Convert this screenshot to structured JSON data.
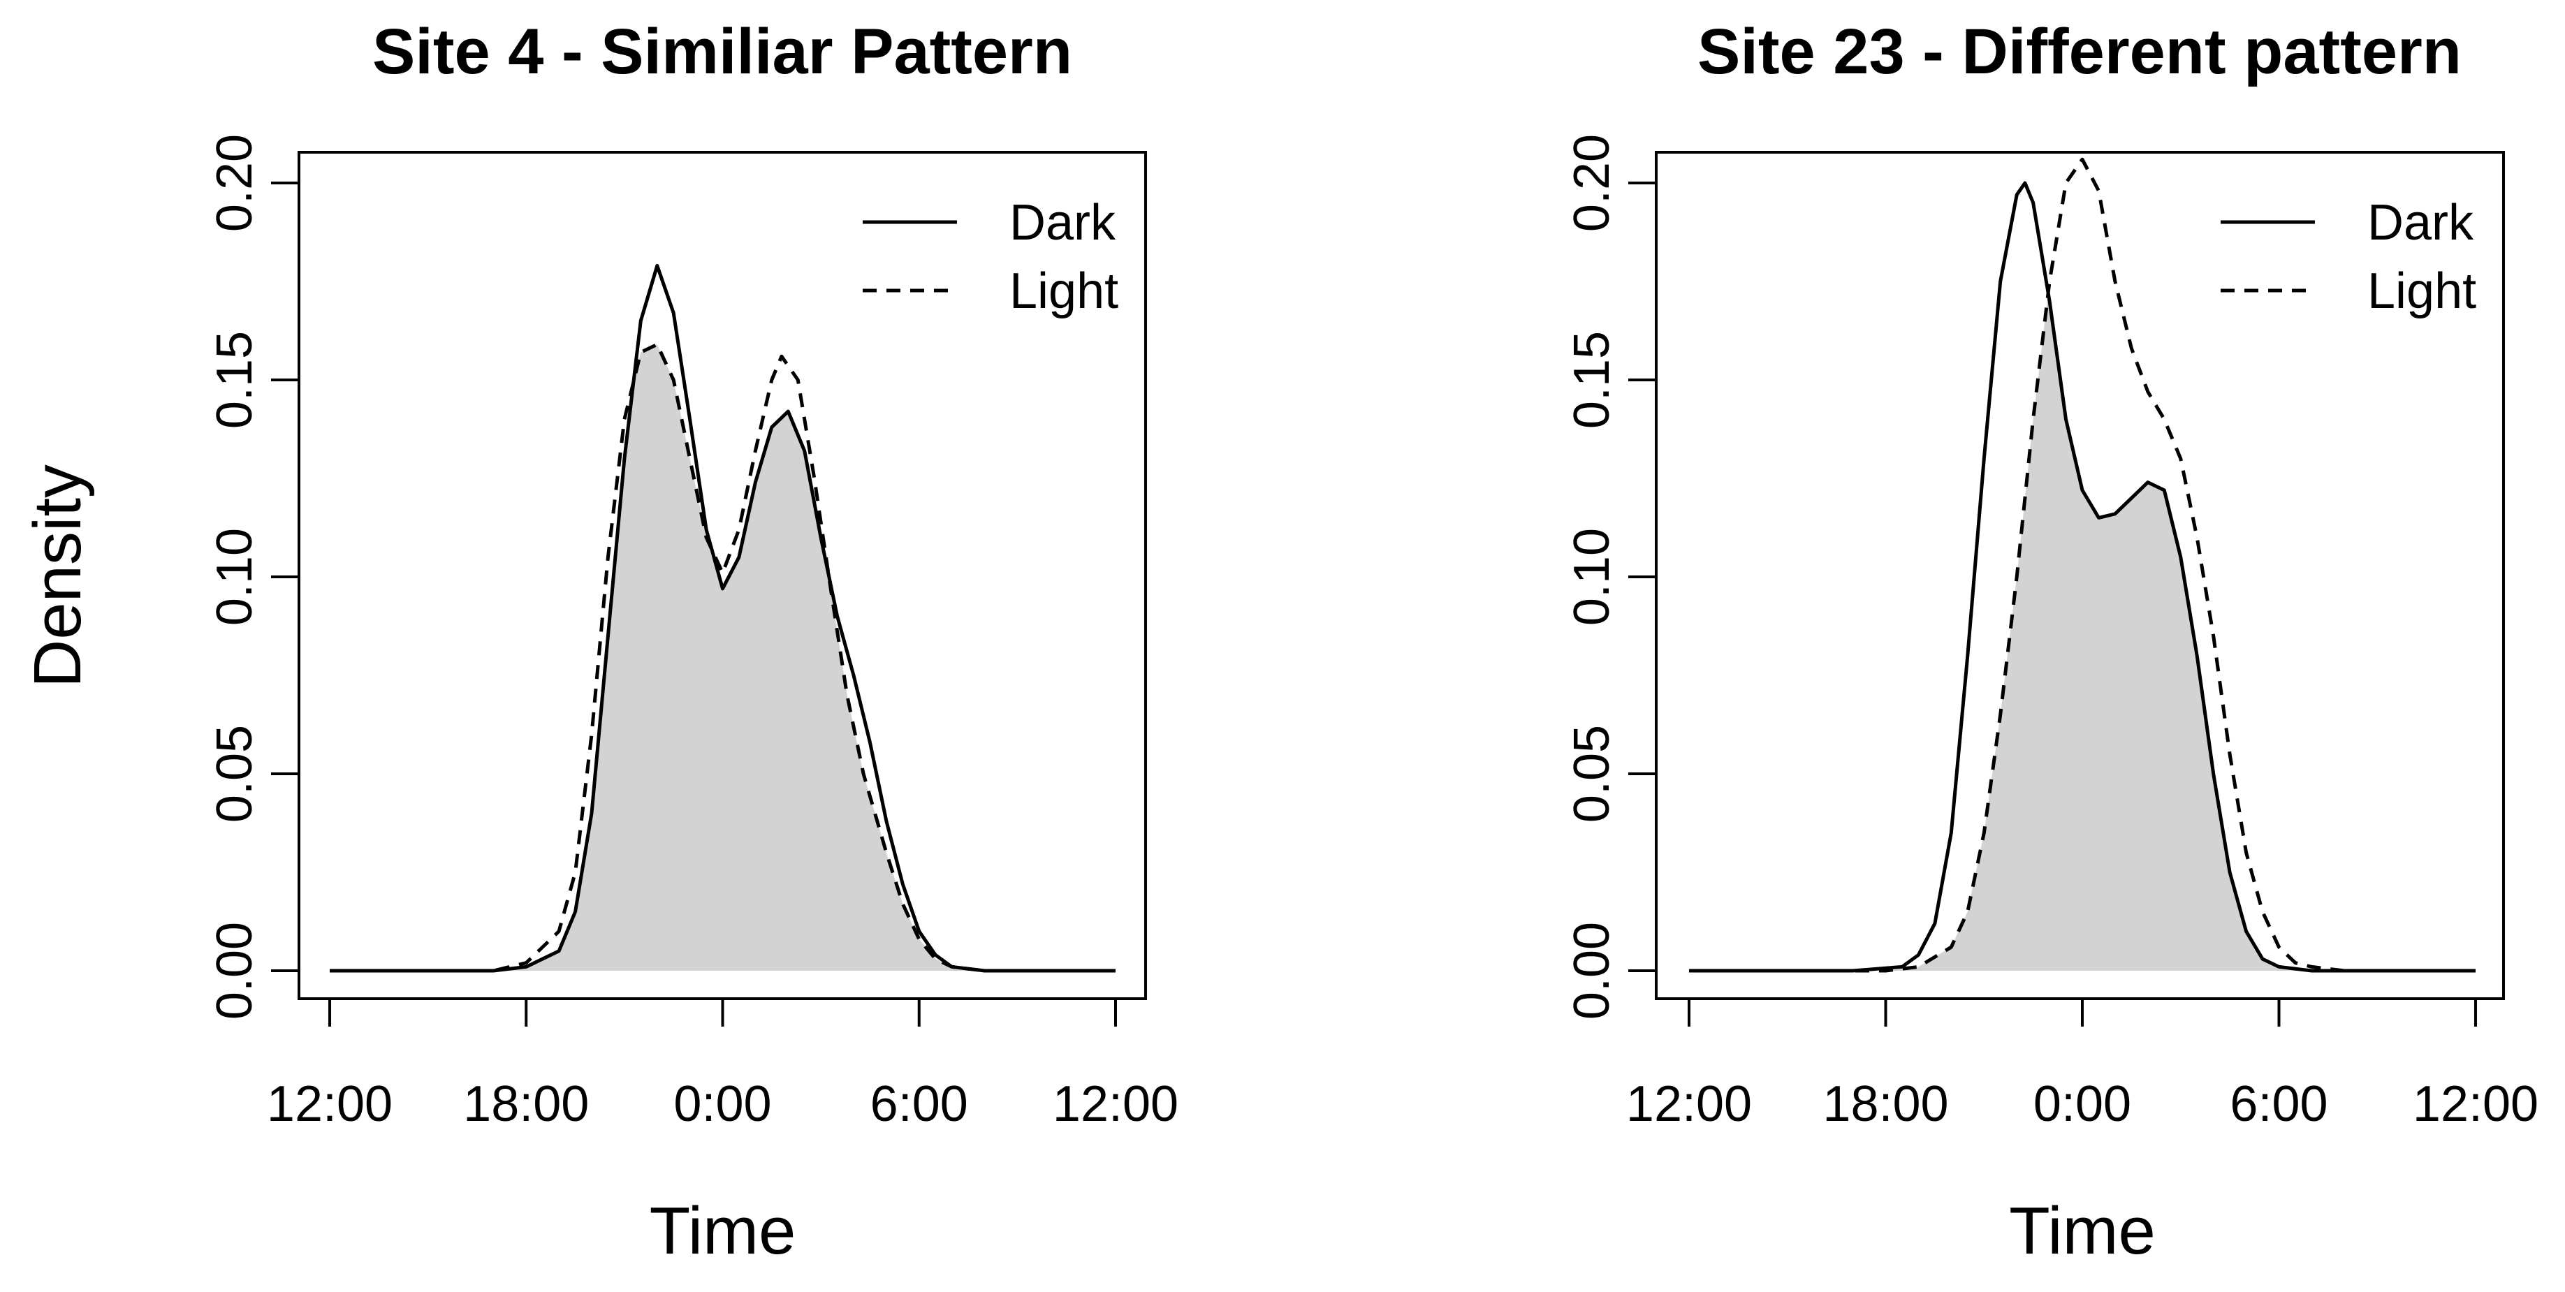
{
  "figure": {
    "y_axis_label": "Density"
  },
  "chart_data": [
    {
      "type": "area",
      "title": "Site 4 - Similiar Pattern",
      "xlabel": "Time",
      "ylabel": "Density",
      "x_tick_labels": [
        "12:00",
        "18:00",
        "0:00",
        "6:00",
        "12:00"
      ],
      "y_tick_labels": [
        "0.00",
        "0.05",
        "0.10",
        "0.15",
        "0.20"
      ],
      "xlim": [
        -12,
        12
      ],
      "ylim": [
        0,
        0.2
      ],
      "legend_position": "top-right",
      "overlap_shaded": true,
      "colors": {
        "line": "#000000",
        "overlap_fill": "#d3d3d3"
      },
      "series": [
        {
          "name": "Dark",
          "style": "solid",
          "points": [
            [
              -12,
              0
            ],
            [
              -7,
              0
            ],
            [
              -6,
              0.001
            ],
            [
              -5,
              0.005
            ],
            [
              -4.5,
              0.015
            ],
            [
              -4,
              0.04
            ],
            [
              -3.5,
              0.085
            ],
            [
              -3,
              0.13
            ],
            [
              -2.5,
              0.165
            ],
            [
              -2,
              0.179
            ],
            [
              -1.5,
              0.167
            ],
            [
              -1,
              0.14
            ],
            [
              -0.5,
              0.112
            ],
            [
              0,
              0.097
            ],
            [
              0.5,
              0.105
            ],
            [
              1,
              0.124
            ],
            [
              1.5,
              0.138
            ],
            [
              2,
              0.142
            ],
            [
              2.5,
              0.132
            ],
            [
              3,
              0.11
            ],
            [
              3.5,
              0.09
            ],
            [
              4,
              0.075
            ],
            [
              4.5,
              0.058
            ],
            [
              5,
              0.038
            ],
            [
              5.5,
              0.022
            ],
            [
              6,
              0.01
            ],
            [
              6.5,
              0.004
            ],
            [
              7,
              0.001
            ],
            [
              8,
              0
            ],
            [
              12,
              0
            ]
          ]
        },
        {
          "name": "Light",
          "style": "dashed",
          "points": [
            [
              -12,
              0
            ],
            [
              -7,
              0
            ],
            [
              -6,
              0.002
            ],
            [
              -5,
              0.01
            ],
            [
              -4.5,
              0.025
            ],
            [
              -4,
              0.06
            ],
            [
              -3.5,
              0.105
            ],
            [
              -3,
              0.14
            ],
            [
              -2.5,
              0.157
            ],
            [
              -2,
              0.159
            ],
            [
              -1.5,
              0.15
            ],
            [
              -1,
              0.13
            ],
            [
              -0.5,
              0.11
            ],
            [
              0,
              0.101
            ],
            [
              0.5,
              0.112
            ],
            [
              1,
              0.132
            ],
            [
              1.5,
              0.15
            ],
            [
              1.8,
              0.156
            ],
            [
              2.3,
              0.15
            ],
            [
              2.8,
              0.125
            ],
            [
              3.3,
              0.097
            ],
            [
              3.8,
              0.07
            ],
            [
              4.3,
              0.05
            ],
            [
              5,
              0.03
            ],
            [
              5.5,
              0.017
            ],
            [
              6,
              0.008
            ],
            [
              6.5,
              0.003
            ],
            [
              7,
              0.001
            ],
            [
              8,
              0
            ],
            [
              12,
              0
            ]
          ]
        }
      ]
    },
    {
      "type": "area",
      "title": "Site 23 - Different pattern",
      "xlabel": "Time",
      "ylabel": "Density",
      "x_tick_labels": [
        "12:00",
        "18:00",
        "0:00",
        "6:00",
        "12:00"
      ],
      "y_tick_labels": [
        "0.00",
        "0.05",
        "0.10",
        "0.15",
        "0.20"
      ],
      "xlim": [
        -12,
        12
      ],
      "ylim": [
        0,
        0.2
      ],
      "legend_position": "top-right",
      "overlap_shaded": true,
      "colors": {
        "line": "#000000",
        "overlap_fill": "#d3d3d3"
      },
      "series": [
        {
          "name": "Dark",
          "style": "solid",
          "points": [
            [
              -12,
              0
            ],
            [
              -7,
              0
            ],
            [
              -5.5,
              0.001
            ],
            [
              -5,
              0.004
            ],
            [
              -4.5,
              0.012
            ],
            [
              -4,
              0.035
            ],
            [
              -3.5,
              0.08
            ],
            [
              -3,
              0.13
            ],
            [
              -2.5,
              0.175
            ],
            [
              -2,
              0.197
            ],
            [
              -1.75,
              0.2
            ],
            [
              -1.5,
              0.195
            ],
            [
              -1,
              0.17
            ],
            [
              -0.5,
              0.14
            ],
            [
              0,
              0.122
            ],
            [
              0.5,
              0.115
            ],
            [
              1,
              0.116
            ],
            [
              1.5,
              0.12
            ],
            [
              2,
              0.124
            ],
            [
              2.5,
              0.122
            ],
            [
              3,
              0.105
            ],
            [
              3.5,
              0.08
            ],
            [
              4,
              0.05
            ],
            [
              4.5,
              0.025
            ],
            [
              5,
              0.01
            ],
            [
              5.5,
              0.003
            ],
            [
              6,
              0.001
            ],
            [
              7,
              0
            ],
            [
              12,
              0
            ]
          ]
        },
        {
          "name": "Light",
          "style": "dashed",
          "points": [
            [
              -12,
              0
            ],
            [
              -6,
              0
            ],
            [
              -5,
              0.001
            ],
            [
              -4,
              0.006
            ],
            [
              -3.5,
              0.015
            ],
            [
              -3,
              0.035
            ],
            [
              -2.5,
              0.065
            ],
            [
              -2,
              0.1
            ],
            [
              -1.5,
              0.14
            ],
            [
              -1,
              0.175
            ],
            [
              -0.5,
              0.2
            ],
            [
              0,
              0.206
            ],
            [
              0.5,
              0.198
            ],
            [
              1,
              0.175
            ],
            [
              1.5,
              0.158
            ],
            [
              2,
              0.147
            ],
            [
              2.5,
              0.14
            ],
            [
              3,
              0.13
            ],
            [
              3.5,
              0.11
            ],
            [
              4,
              0.085
            ],
            [
              4.5,
              0.055
            ],
            [
              5,
              0.03
            ],
            [
              5.5,
              0.015
            ],
            [
              6,
              0.006
            ],
            [
              6.5,
              0.002
            ],
            [
              7,
              0.001
            ],
            [
              8,
              0
            ],
            [
              12,
              0
            ]
          ]
        }
      ]
    }
  ]
}
